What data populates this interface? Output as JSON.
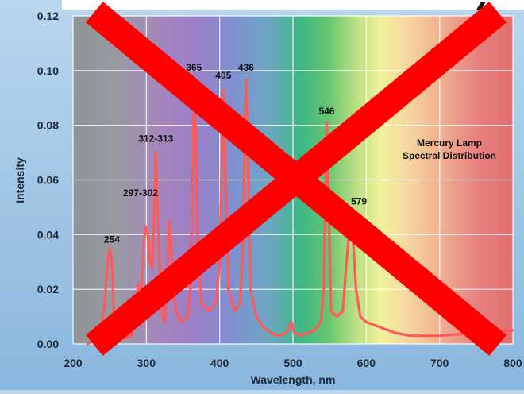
{
  "chart_data": {
    "type": "line",
    "xlabel": "Wavelength, nm",
    "ylabel": "Intensity",
    "xlim": [
      200,
      800
    ],
    "ylim": [
      0,
      0.12
    ],
    "x_ticks": [
      "200",
      "300",
      "400",
      "500",
      "600",
      "700",
      "800"
    ],
    "y_ticks": [
      "0.00",
      "0.02",
      "0.04",
      "0.06",
      "0.08",
      "0.10",
      "0.12"
    ],
    "grid": true,
    "annotation": [
      "Mercury Lamp",
      "Spectral Distribution"
    ],
    "series": [
      {
        "color": "#ff5a5a",
        "points": [
          [
            220,
            0.0
          ],
          [
            230,
            0.002
          ],
          [
            238,
            0.006
          ],
          [
            243,
            0.014
          ],
          [
            247,
            0.03
          ],
          [
            250,
            0.035
          ],
          [
            253,
            0.03
          ],
          [
            256,
            0.01
          ],
          [
            260,
            0.003
          ],
          [
            270,
            0.002
          ],
          [
            280,
            0.003
          ],
          [
            286,
            0.012
          ],
          [
            289,
            0.022
          ],
          [
            291,
            0.01
          ],
          [
            293,
            0.018
          ],
          [
            296,
            0.035
          ],
          [
            299,
            0.043
          ],
          [
            302,
            0.04
          ],
          [
            305,
            0.03
          ],
          [
            308,
            0.028
          ],
          [
            311,
            0.05
          ],
          [
            313,
            0.07
          ],
          [
            315,
            0.05
          ],
          [
            318,
            0.03
          ],
          [
            321,
            0.012
          ],
          [
            325,
            0.008
          ],
          [
            328,
            0.02
          ],
          [
            331,
            0.045
          ],
          [
            334,
            0.035
          ],
          [
            337,
            0.025
          ],
          [
            340,
            0.012
          ],
          [
            348,
            0.008
          ],
          [
            356,
            0.01
          ],
          [
            360,
            0.02
          ],
          [
            363,
            0.06
          ],
          [
            365,
            0.09
          ],
          [
            367,
            0.08
          ],
          [
            370,
            0.04
          ],
          [
            375,
            0.015
          ],
          [
            385,
            0.012
          ],
          [
            395,
            0.015
          ],
          [
            400,
            0.03
          ],
          [
            403,
            0.07
          ],
          [
            405,
            0.093
          ],
          [
            408,
            0.06
          ],
          [
            412,
            0.02
          ],
          [
            420,
            0.012
          ],
          [
            428,
            0.015
          ],
          [
            432,
            0.04
          ],
          [
            434,
            0.08
          ],
          [
            436,
            0.097
          ],
          [
            438,
            0.075
          ],
          [
            442,
            0.02
          ],
          [
            450,
            0.01
          ],
          [
            460,
            0.006
          ],
          [
            470,
            0.004
          ],
          [
            480,
            0.003
          ],
          [
            490,
            0.004
          ],
          [
            495,
            0.006
          ],
          [
            498,
            0.008
          ],
          [
            502,
            0.004
          ],
          [
            510,
            0.003
          ],
          [
            520,
            0.004
          ],
          [
            530,
            0.005
          ],
          [
            538,
            0.008
          ],
          [
            542,
            0.02
          ],
          [
            545,
            0.07
          ],
          [
            546,
            0.081
          ],
          [
            548,
            0.06
          ],
          [
            552,
            0.012
          ],
          [
            560,
            0.01
          ],
          [
            568,
            0.012
          ],
          [
            573,
            0.03
          ],
          [
            577,
            0.042
          ],
          [
            579,
            0.045
          ],
          [
            582,
            0.038
          ],
          [
            586,
            0.02
          ],
          [
            592,
            0.01
          ],
          [
            600,
            0.008
          ],
          [
            620,
            0.006
          ],
          [
            640,
            0.004
          ],
          [
            660,
            0.003
          ],
          [
            700,
            0.003
          ],
          [
            750,
            0.004
          ],
          [
            800,
            0.005
          ]
        ]
      }
    ],
    "peak_labels": [
      {
        "text": "254",
        "x": 253,
        "y": 0.037
      },
      {
        "text": "297-302",
        "x": 292,
        "y": 0.054
      },
      {
        "text": "312-313",
        "x": 313,
        "y": 0.074
      },
      {
        "text": "365",
        "x": 365,
        "y": 0.1
      },
      {
        "text": "405",
        "x": 405,
        "y": 0.097
      },
      {
        "text": "436",
        "x": 436,
        "y": 0.1
      },
      {
        "text": "546",
        "x": 546,
        "y": 0.084
      },
      {
        "text": "579",
        "x": 590,
        "y": 0.051
      }
    ],
    "overlay_mark": "red-x"
  }
}
